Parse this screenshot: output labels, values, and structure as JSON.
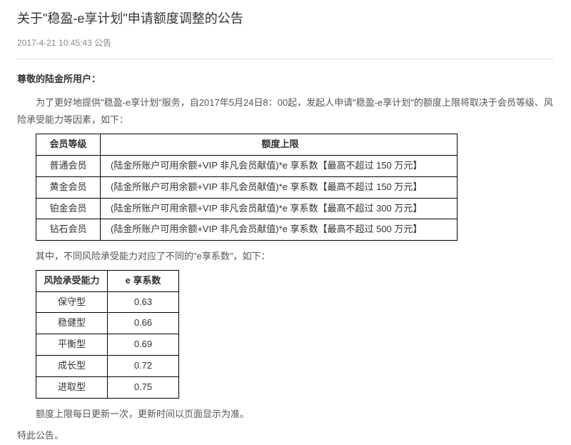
{
  "header": {
    "title": "关于\"稳盈-e享计划\"申请额度调整的公告",
    "timestamp": "2017-4-21 10:45:43",
    "category": "公告"
  },
  "salutation": "尊敬的陆金所用户：",
  "intro": "为了更好地提供\"稳盈-e享计划\"服务，自2017年5月24日8：00起，发起人申请\"稳盈-e享计划\"的额度上限将取决于会员等级、风险承受能力等因素，如下：",
  "table1": {
    "columns": [
      "会员等级",
      "额度上限"
    ],
    "rows": [
      [
        "普通会员",
        "(陆金所账户可用余额+VIP 非凡会员献值)*e 享系数【最高不超过 150 万元】"
      ],
      [
        "黄金会员",
        "(陆金所账户可用余额+VIP 非凡会员献值)*e 享系数【最高不超过 150 万元】"
      ],
      [
        "铂金会员",
        "(陆金所账户可用余额+VIP 非凡会员献值)*e 享系数【最高不超过 300 万元】"
      ],
      [
        "钻石会员",
        "(陆金所账户可用余额+VIP 非凡会员献值)*e 享系数【最高不超过 500 万元】"
      ]
    ]
  },
  "middle_para": "其中，不同风险承受能力对应了不同的\"e享系数\"，如下：",
  "table2": {
    "columns": [
      "风险承受能力",
      "e 享系数"
    ],
    "rows": [
      [
        "保守型",
        "0.63"
      ],
      [
        "稳健型",
        "0.66"
      ],
      [
        "平衡型",
        "0.69"
      ],
      [
        "成长型",
        "0.72"
      ],
      [
        "进取型",
        "0.75"
      ]
    ]
  },
  "note": "额度上限每日更新一次，更新时间以页面显示为准。",
  "closing": "特此公告。",
  "style": {
    "background_color": "#ffffff",
    "text_color": "#333333",
    "muted_color": "#888888",
    "body_text_color": "#555555",
    "border_color": "#000000",
    "divider_color": "#dddddd",
    "title_fontsize": 18,
    "body_fontsize": 13,
    "meta_fontsize": 12,
    "table_border_width": 1
  }
}
